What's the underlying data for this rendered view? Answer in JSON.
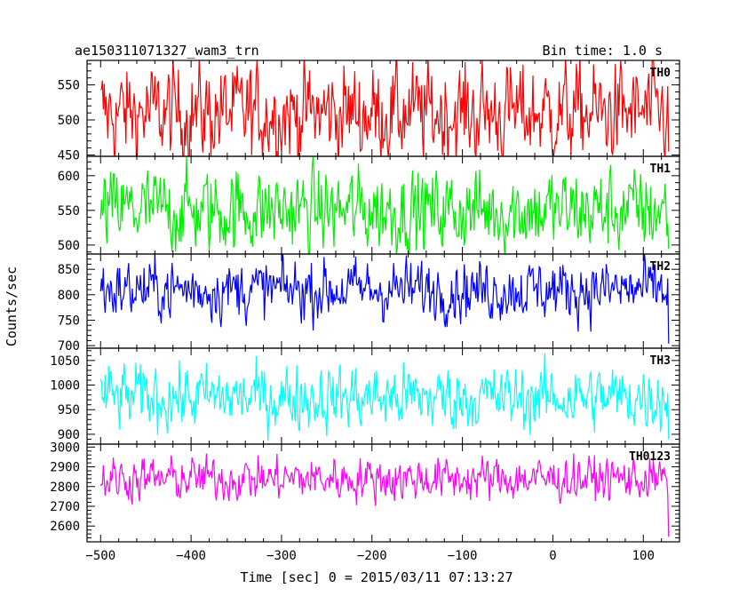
{
  "header": {
    "title": "ae150311071327_wam3_trn",
    "bin_time": "Bin time: 1.0 s"
  },
  "chart_data": {
    "type": "line",
    "xlabel": "Time [sec] 0 = 2015/03/11 07:13:27",
    "ylabel": "Counts/sec",
    "xlim": [
      -515,
      140
    ],
    "x_ticks": [
      -500,
      -400,
      -300,
      -200,
      -100,
      0,
      100
    ],
    "x_range_data": [
      -500,
      128
    ],
    "bin_time_s": 1.0,
    "panels": [
      {
        "name": "TH0",
        "color": "#ff0000",
        "ylim": [
          448,
          585
        ],
        "y_ticks": [
          450,
          500,
          550
        ],
        "mean": 510,
        "amplitude": 38,
        "description_values": {
          "typical_min": 465,
          "typical_max": 575
        }
      },
      {
        "name": "TH1",
        "color": "#00ee00",
        "ylim": [
          487,
          628
        ],
        "y_ticks": [
          500,
          550,
          600
        ],
        "mean": 550,
        "amplitude": 33,
        "description_values": {
          "typical_min": 500,
          "typical_max": 610
        }
      },
      {
        "name": "TH2",
        "color": "#0000ff",
        "ylim": [
          695,
          880
        ],
        "y_ticks": [
          700,
          750,
          800,
          850
        ],
        "mean": 810,
        "amplitude": 32,
        "description_values": {
          "typical_min": 720,
          "typical_max": 875
        }
      },
      {
        "name": "TH3",
        "color": "#00ffff",
        "ylim": [
          880,
          1075
        ],
        "y_ticks": [
          900,
          950,
          1000,
          1050
        ],
        "mean": 975,
        "amplitude": 36,
        "description_values": {
          "typical_min": 900,
          "typical_max": 1060
        }
      },
      {
        "name": "TH0123",
        "color": "#ff00ff",
        "ylim": [
          2520,
          3015
        ],
        "y_ticks": [
          2600,
          2700,
          2800,
          2900,
          3000
        ],
        "mean": 2840,
        "amplitude": 60,
        "description_values": {
          "typical_min": 2680,
          "typical_max": 3000
        }
      }
    ]
  }
}
